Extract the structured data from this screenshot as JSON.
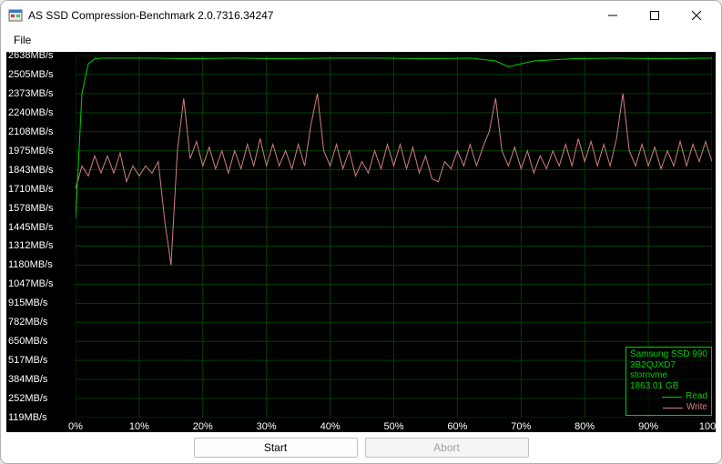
{
  "window": {
    "title": "AS SSD Compression-Benchmark 2.0.7316.34247"
  },
  "menu": {
    "file": "File"
  },
  "buttons": {
    "start": "Start",
    "abort": "Abort"
  },
  "legend": {
    "device_name": "Samsung SSD 990",
    "device_id": "3B2QJXD7",
    "driver": "stornvme",
    "capacity": "1863.01 GB",
    "read_label": "Read",
    "write_label": "Write",
    "border_color": "#00d000",
    "text_color": "#00d000",
    "read_color": "#00d000",
    "write_color": "#d08080"
  },
  "chart": {
    "background": "#000000",
    "label_color": "#ffffff",
    "grid_color": "#004000",
    "label_fontsize": 11,
    "ymin": 119,
    "ymax": 2638,
    "ytick_step_approx": 132,
    "ylabels": [
      "2638MB/s",
      "2505MB/s",
      "2373MB/s",
      "2240MB/s",
      "2108MB/s",
      "1975MB/s",
      "1843MB/s",
      "1710MB/s",
      "1578MB/s",
      "1445MB/s",
      "1312MB/s",
      "1180MB/s",
      "1047MB/s",
      "915MB/s",
      "782MB/s",
      "650MB/s",
      "517MB/s",
      "384MB/s",
      "252MB/s",
      "119MB/s"
    ],
    "xmin": 0,
    "xmax": 100,
    "xlabels": [
      "0%",
      "10%",
      "20%",
      "30%",
      "40%",
      "50%",
      "60%",
      "70%",
      "80%",
      "90%",
      "100%"
    ],
    "series": {
      "read": {
        "color": "#00d000",
        "line_width": 1,
        "points": [
          [
            0,
            1500
          ],
          [
            1,
            2373
          ],
          [
            2,
            2580
          ],
          [
            3,
            2615
          ],
          [
            4,
            2620
          ],
          [
            5,
            2620
          ],
          [
            8,
            2620
          ],
          [
            12,
            2620
          ],
          [
            18,
            2615
          ],
          [
            25,
            2620
          ],
          [
            32,
            2615
          ],
          [
            40,
            2620
          ],
          [
            48,
            2620
          ],
          [
            55,
            2615
          ],
          [
            62,
            2620
          ],
          [
            66,
            2600
          ],
          [
            68,
            2560
          ],
          [
            70,
            2580
          ],
          [
            72,
            2600
          ],
          [
            78,
            2615
          ],
          [
            85,
            2620
          ],
          [
            92,
            2615
          ],
          [
            100,
            2620
          ]
        ]
      },
      "write": {
        "color": "#d08080",
        "line_width": 1,
        "points": [
          [
            0,
            1710
          ],
          [
            1,
            1870
          ],
          [
            2,
            1800
          ],
          [
            3,
            1940
          ],
          [
            4,
            1820
          ],
          [
            5,
            1940
          ],
          [
            6,
            1820
          ],
          [
            7,
            1960
          ],
          [
            8,
            1760
          ],
          [
            9,
            1870
          ],
          [
            10,
            1800
          ],
          [
            11,
            1870
          ],
          [
            12,
            1820
          ],
          [
            13,
            1900
          ],
          [
            14,
            1490
          ],
          [
            15,
            1180
          ],
          [
            16,
            1975
          ],
          [
            17,
            2340
          ],
          [
            18,
            1920
          ],
          [
            19,
            2040
          ],
          [
            20,
            1870
          ],
          [
            21,
            2000
          ],
          [
            22,
            1850
          ],
          [
            23,
            1975
          ],
          [
            24,
            1820
          ],
          [
            25,
            1975
          ],
          [
            26,
            1850
          ],
          [
            27,
            2020
          ],
          [
            28,
            1870
          ],
          [
            29,
            2060
          ],
          [
            30,
            1870
          ],
          [
            31,
            2020
          ],
          [
            32,
            1870
          ],
          [
            33,
            1975
          ],
          [
            34,
            1850
          ],
          [
            35,
            2020
          ],
          [
            36,
            1870
          ],
          [
            37,
            2160
          ],
          [
            38,
            2373
          ],
          [
            39,
            1975
          ],
          [
            40,
            1870
          ],
          [
            41,
            2020
          ],
          [
            42,
            1850
          ],
          [
            43,
            1975
          ],
          [
            44,
            1800
          ],
          [
            45,
            1900
          ],
          [
            46,
            1820
          ],
          [
            47,
            1975
          ],
          [
            48,
            1850
          ],
          [
            49,
            2020
          ],
          [
            50,
            1870
          ],
          [
            51,
            2020
          ],
          [
            52,
            1850
          ],
          [
            53,
            2000
          ],
          [
            54,
            1820
          ],
          [
            55,
            1940
          ],
          [
            56,
            1780
          ],
          [
            57,
            1760
          ],
          [
            58,
            1900
          ],
          [
            59,
            1850
          ],
          [
            60,
            1975
          ],
          [
            61,
            1870
          ],
          [
            62,
            2020
          ],
          [
            63,
            1870
          ],
          [
            64,
            2000
          ],
          [
            65,
            2108
          ],
          [
            66,
            2340
          ],
          [
            67,
            1975
          ],
          [
            68,
            1870
          ],
          [
            69,
            2000
          ],
          [
            70,
            1850
          ],
          [
            71,
            1975
          ],
          [
            72,
            1820
          ],
          [
            73,
            1940
          ],
          [
            74,
            1850
          ],
          [
            75,
            1975
          ],
          [
            76,
            1870
          ],
          [
            77,
            2020
          ],
          [
            78,
            1870
          ],
          [
            79,
            2060
          ],
          [
            80,
            1900
          ],
          [
            81,
            2040
          ],
          [
            82,
            1870
          ],
          [
            83,
            2020
          ],
          [
            84,
            1870
          ],
          [
            85,
            2060
          ],
          [
            86,
            2373
          ],
          [
            87,
            1975
          ],
          [
            88,
            1870
          ],
          [
            89,
            2020
          ],
          [
            90,
            1870
          ],
          [
            91,
            2000
          ],
          [
            92,
            1850
          ],
          [
            93,
            1975
          ],
          [
            94,
            1870
          ],
          [
            95,
            2040
          ],
          [
            96,
            1870
          ],
          [
            97,
            2020
          ],
          [
            98,
            1900
          ],
          [
            99,
            2040
          ],
          [
            100,
            1900
          ]
        ]
      }
    }
  }
}
